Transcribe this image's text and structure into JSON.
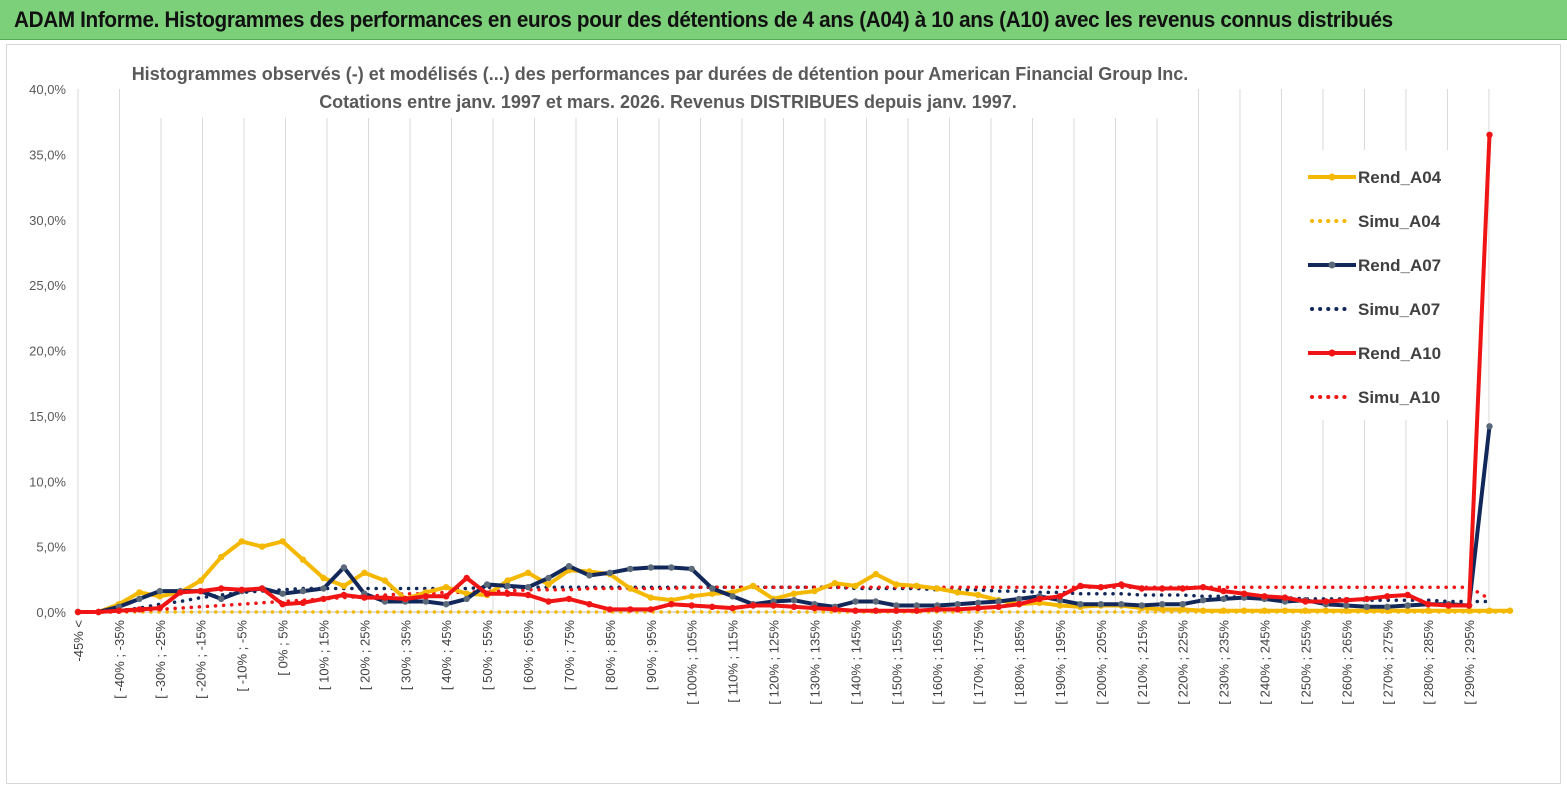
{
  "banner": {
    "title": "ADAM Informe. Histogrammes des performances en euros pour des détentions de 4 ans (A04) à 10 ans (A10) avec les revenus connus distribués"
  },
  "chart_data": {
    "type": "line",
    "title": "Histogrammes observés (-)  et modélisés (...) des performances par durées de détention pour American Financial Group Inc.",
    "subtitle": "Cotations entre janv. 1997 et mars. 2026.  Revenus DISTRIBUES depuis janv. 1997.",
    "xlabel": "",
    "ylabel": "",
    "ylim": [
      0,
      40
    ],
    "yticks": [
      "0,0%",
      "5,0%",
      "10,0%",
      "15,0%",
      "20,0%",
      "25,0%",
      "30,0%",
      "35,0%",
      "40,0%"
    ],
    "grid": "vertical",
    "legend_position": "right",
    "xtick_labels": [
      "-45% <",
      "[ -40% ; -35%",
      "[ -30% ; -25%",
      "[ -20% ; -15%",
      "[ -10% ; -5%",
      "[ 0% ; 5%",
      "[ 10% ; 15%",
      "[ 20% ; 25%",
      "[ 30% ; 35%",
      "[ 40% ; 45%",
      "[ 50% ; 55%",
      "[ 60% ; 65%",
      "[ 70% ; 75%",
      "[ 80% ; 85%",
      "[ 90% ; 95%",
      "[ 100% ; 105%",
      "[ 110% ; 115%",
      "[ 120% ; 125%",
      "[ 130% ; 135%",
      "[ 140% ; 145%",
      "[ 150% ; 155%",
      "[ 160% ; 165%",
      "[ 170% ; 175%",
      "[ 180% ; 185%",
      "[ 190% ; 195%",
      "[ 200% ; 205%",
      "[ 210% ; 215%",
      "[ 220% ; 225%",
      "[ 230% ; 235%",
      "[ 240% ; 245%",
      "[ 250% ; 255%",
      "[ 260% ; 265%",
      "[ 270% ; 275%",
      "[ 280% ; 285%",
      "[ 290% ; 295%"
    ],
    "series": [
      {
        "name": "Rend_A04",
        "style": "solid",
        "color": "#f5b800",
        "values": [
          0,
          0,
          0.6,
          1.5,
          1.2,
          1.5,
          2.4,
          4.2,
          5.4,
          5.0,
          5.4,
          4.0,
          2.6,
          2.0,
          3.0,
          2.4,
          1.0,
          1.5,
          1.9,
          1.4,
          1.3,
          2.4,
          3.0,
          2.1,
          3.2,
          3.1,
          2.9,
          1.8,
          1.1,
          0.9,
          1.2,
          1.4,
          1.5,
          2.0,
          1.0,
          1.4,
          1.6,
          2.2,
          2.0,
          2.9,
          2.1,
          2.0,
          1.8,
          1.5,
          1.3,
          0.9,
          0.6,
          0.7,
          0.5,
          0.4,
          0.5,
          0.5,
          0.3,
          0.2,
          0.2,
          0.1,
          0.1,
          0.1,
          0.1,
          0.1,
          0.1,
          0.1,
          0.1,
          0.1,
          0.1,
          0.1,
          0.1,
          0.1,
          0.1,
          0.1,
          0.1
        ]
      },
      {
        "name": "Simu_A04",
        "style": "dotted",
        "color": "#f5b800",
        "values": [
          0,
          0,
          0,
          0,
          0,
          0,
          0,
          0,
          0,
          0,
          0,
          0,
          0,
          0,
          0,
          0,
          0,
          0,
          0,
          0,
          0,
          0,
          0,
          0,
          0,
          0,
          0,
          0,
          0,
          0,
          0,
          0,
          0,
          0,
          0,
          0,
          0,
          0,
          0,
          0,
          0,
          0,
          0,
          0,
          0,
          0,
          0,
          0,
          0,
          0,
          0,
          0,
          0,
          0,
          0,
          0,
          0,
          0,
          0,
          0,
          0,
          0,
          0,
          0,
          0,
          0,
          0,
          0,
          0,
          0,
          0
        ]
      },
      {
        "name": "Rend_A07",
        "style": "solid",
        "color": "#13285a",
        "values": [
          0,
          0,
          0.4,
          1.0,
          1.6,
          1.6,
          1.6,
          1.0,
          1.6,
          1.8,
          1.4,
          1.6,
          1.8,
          3.4,
          1.4,
          0.8,
          0.8,
          0.8,
          0.6,
          1.0,
          2.1,
          2.0,
          1.9,
          2.6,
          3.5,
          2.8,
          3.0,
          3.3,
          3.4,
          3.4,
          3.3,
          1.8,
          1.2,
          0.6,
          0.8,
          0.9,
          0.6,
          0.4,
          0.8,
          0.8,
          0.5,
          0.5,
          0.5,
          0.6,
          0.7,
          0.8,
          1.0,
          1.2,
          0.9,
          0.6,
          0.6,
          0.6,
          0.5,
          0.6,
          0.6,
          0.9,
          1.0,
          1.1,
          1.0,
          0.8,
          0.9,
          0.6,
          0.5,
          0.4,
          0.4,
          0.5,
          0.6,
          0.6,
          0.5,
          14.2
        ]
      },
      {
        "name": "Simu_A07",
        "style": "dotted",
        "color": "#13285a",
        "values": [
          0,
          0,
          0.1,
          0.3,
          0.6,
          0.8,
          1.1,
          1.3,
          1.5,
          1.6,
          1.7,
          1.8,
          1.8,
          1.8,
          1.8,
          1.8,
          1.8,
          1.8,
          1.8,
          1.8,
          1.9,
          1.9,
          1.9,
          1.9,
          1.9,
          1.9,
          1.9,
          1.9,
          1.9,
          1.9,
          1.9,
          1.9,
          1.9,
          1.9,
          1.9,
          1.9,
          1.9,
          1.9,
          1.8,
          1.8,
          1.8,
          1.8,
          1.7,
          1.7,
          1.7,
          1.6,
          1.6,
          1.5,
          1.5,
          1.4,
          1.4,
          1.4,
          1.3,
          1.3,
          1.3,
          1.2,
          1.2,
          1.1,
          1.1,
          1.1,
          1.0,
          1.0,
          1.0,
          0.9,
          0.9,
          0.9,
          0.9,
          0.8,
          0.8,
          0.8
        ]
      },
      {
        "name": "Rend_A10",
        "style": "solid",
        "color": "#f01414",
        "values": [
          0,
          0,
          0.1,
          0.2,
          0.3,
          1.5,
          1.6,
          1.8,
          1.7,
          1.8,
          0.6,
          0.7,
          1.0,
          1.3,
          1.1,
          1.1,
          1.0,
          1.2,
          1.2,
          2.6,
          1.4,
          1.4,
          1.3,
          0.8,
          1.0,
          0.6,
          0.2,
          0.2,
          0.2,
          0.6,
          0.5,
          0.4,
          0.3,
          0.5,
          0.5,
          0.4,
          0.3,
          0.2,
          0.1,
          0.1,
          0.1,
          0.1,
          0.2,
          0.2,
          0.3,
          0.4,
          0.6,
          1.0,
          1.2,
          2.0,
          1.9,
          2.1,
          1.8,
          1.8,
          1.8,
          1.9,
          1.6,
          1.4,
          1.2,
          1.1,
          0.8,
          0.8,
          0.9,
          1.0,
          1.2,
          1.3,
          0.6,
          0.5,
          0.5,
          36.5
        ]
      },
      {
        "name": "Simu_A10",
        "style": "dotted",
        "color": "#f01414",
        "values": [
          0,
          0,
          0,
          0.1,
          0.2,
          0.3,
          0.4,
          0.5,
          0.6,
          0.7,
          0.8,
          0.9,
          1.0,
          1.1,
          1.2,
          1.3,
          1.4,
          1.4,
          1.5,
          1.5,
          1.6,
          1.6,
          1.7,
          1.7,
          1.7,
          1.8,
          1.8,
          1.8,
          1.8,
          1.8,
          1.9,
          1.9,
          1.9,
          1.9,
          1.9,
          1.9,
          1.9,
          1.9,
          1.9,
          1.9,
          1.9,
          1.9,
          1.9,
          1.9,
          1.9,
          1.9,
          1.9,
          1.9,
          1.9,
          1.9,
          1.9,
          1.9,
          1.9,
          1.9,
          1.9,
          1.9,
          1.9,
          1.9,
          1.9,
          1.9,
          1.9,
          1.9,
          1.9,
          1.9,
          1.9,
          1.9,
          1.9,
          1.9,
          1.9,
          1.0
        ]
      }
    ]
  }
}
